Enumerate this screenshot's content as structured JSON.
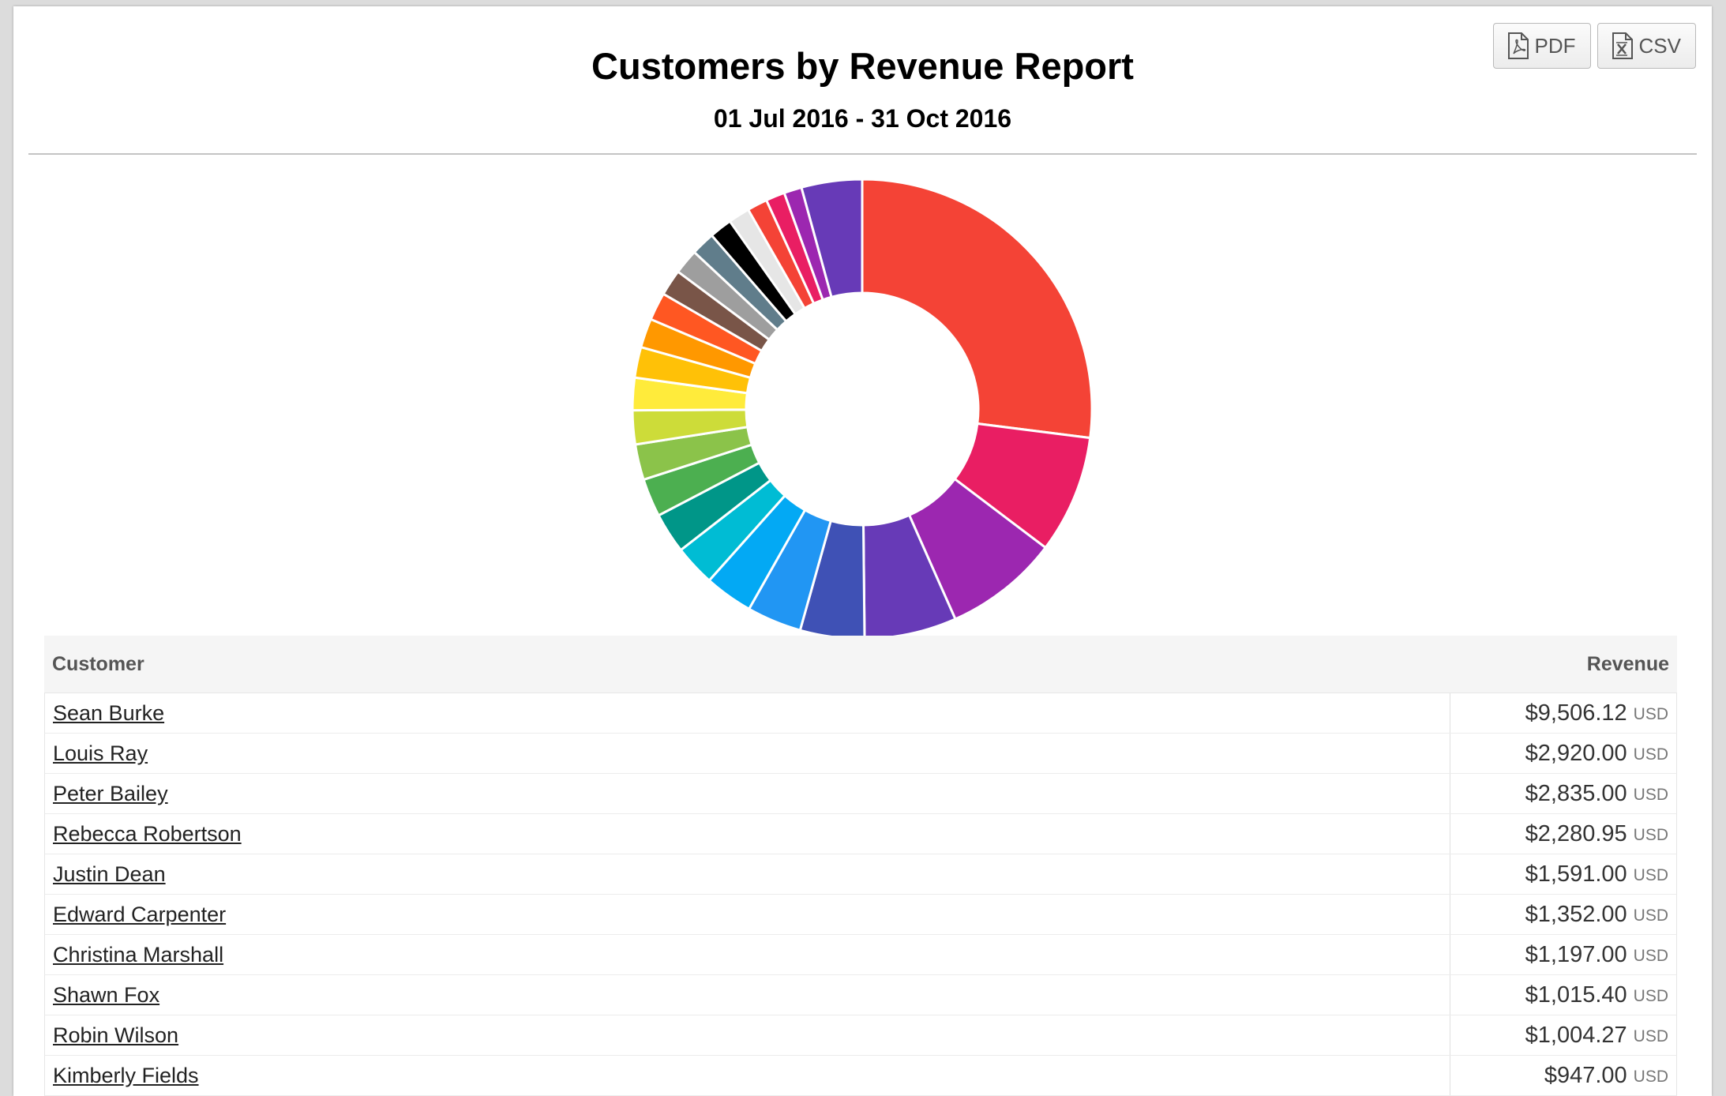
{
  "report": {
    "title": "Customers by Revenue Report",
    "date_range": "01 Jul 2016 - 31 Oct 2016"
  },
  "export": {
    "pdf_label": "PDF",
    "csv_label": "CSV"
  },
  "table": {
    "col_customer": "Customer",
    "col_revenue": "Revenue",
    "rows": [
      {
        "name": "Sean Burke",
        "amount": "$9,506.12",
        "currency": "USD"
      },
      {
        "name": "Louis Ray",
        "amount": "$2,920.00",
        "currency": "USD"
      },
      {
        "name": "Peter Bailey",
        "amount": "$2,835.00",
        "currency": "USD"
      },
      {
        "name": "Rebecca Robertson",
        "amount": "$2,280.95",
        "currency": "USD"
      },
      {
        "name": "Justin Dean",
        "amount": "$1,591.00",
        "currency": "USD"
      },
      {
        "name": "Edward Carpenter",
        "amount": "$1,352.00",
        "currency": "USD"
      },
      {
        "name": "Christina Marshall",
        "amount": "$1,197.00",
        "currency": "USD"
      },
      {
        "name": "Shawn Fox",
        "amount": "$1,015.40",
        "currency": "USD"
      },
      {
        "name": "Robin Wilson",
        "amount": "$1,004.27",
        "currency": "USD"
      },
      {
        "name": "Kimberly Fields",
        "amount": "$947.00",
        "currency": "USD"
      }
    ]
  },
  "chart_data": {
    "type": "pie",
    "donut": true,
    "values": [
      9506.12,
      2920.0,
      2835.0,
      2280.95,
      1591.0,
      1352.0,
      1197.0,
      1015.4,
      1004.27,
      947.0,
      880,
      840,
      800,
      760,
      720,
      690,
      650,
      620,
      590,
      560,
      530,
      500,
      470,
      440,
      1500
    ],
    "colors": [
      "#f44336",
      "#e91e63",
      "#9c27b0",
      "#673ab7",
      "#3f51b5",
      "#2196f3",
      "#03a9f4",
      "#00bcd4",
      "#009688",
      "#4caf50",
      "#8bc34a",
      "#cddc39",
      "#ffeb3b",
      "#ffc107",
      "#ff9800",
      "#ff5722",
      "#795548",
      "#9e9e9e",
      "#607d8b",
      "#000000",
      "#e6e6e6"
    ]
  }
}
